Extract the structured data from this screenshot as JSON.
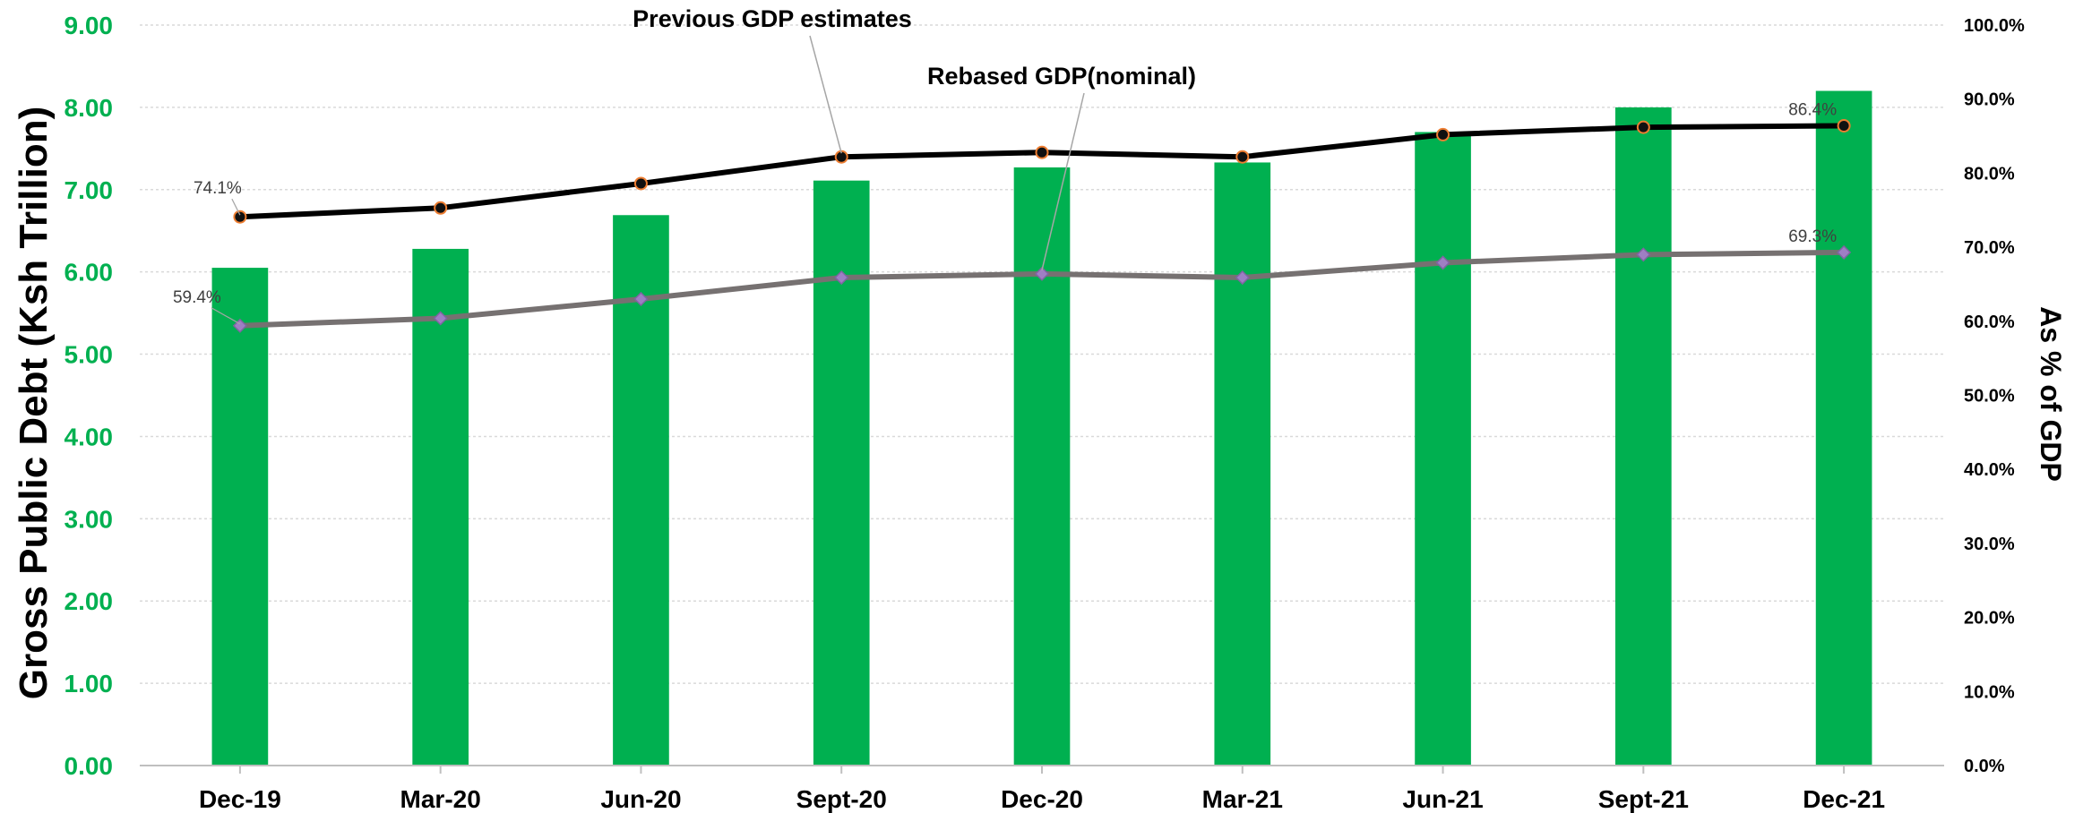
{
  "chart_data": {
    "type": "bar",
    "categories": [
      "Dec-19",
      "Mar-20",
      "Jun-20",
      "Sept-20",
      "Dec-20",
      "Mar-21",
      "Jun-21",
      "Sept-21",
      "Dec-21"
    ],
    "ylabel": "Gross Public Debt (Ksh Trillion)",
    "y2label": "As % of GDP",
    "ylim": [
      0,
      9
    ],
    "y2lim": [
      0,
      100
    ],
    "yticks": [
      "0.00",
      "1.00",
      "2.00",
      "3.00",
      "4.00",
      "5.00",
      "6.00",
      "7.00",
      "8.00",
      "9.00"
    ],
    "y2ticks": [
      "0.0%",
      "10.0%",
      "20.0%",
      "30.0%",
      "40.0%",
      "50.0%",
      "60.0%",
      "70.0%",
      "80.0%",
      "90.0%",
      "100.0%"
    ],
    "grid": true,
    "bars": {
      "axis": "left",
      "color": "#00b050",
      "values": [
        6.05,
        6.28,
        6.69,
        7.11,
        7.27,
        7.33,
        7.7,
        8.0,
        8.2
      ]
    },
    "series": [
      {
        "axis": "right",
        "color": "#000000",
        "marker_fill": "#111111",
        "marker_stroke": "#ed7d31",
        "values": [
          74.1,
          75.3,
          78.6,
          82.2,
          82.8,
          82.2,
          85.2,
          86.2,
          86.4
        ]
      },
      {
        "axis": "right",
        "color": "#767171",
        "marker_fill": "#9e7fc4",
        "marker_stroke": "#8064a2",
        "values": [
          59.4,
          60.4,
          63.0,
          65.9,
          66.4,
          65.9,
          67.9,
          69.0,
          69.3
        ]
      }
    ],
    "data_labels": [
      {
        "series": 0,
        "index": 0,
        "text": "74.1%"
      },
      {
        "series": 0,
        "index": 8,
        "text": "86.4%"
      },
      {
        "series": 1,
        "index": 0,
        "text": "59.4%"
      },
      {
        "series": 1,
        "index": 8,
        "text": "69.3%"
      }
    ],
    "annotations": [
      {
        "text": "Previous GDP estimates",
        "series": 0,
        "index": 3
      },
      {
        "text": "Rebased GDP(nominal)",
        "series": 1,
        "index": 4
      }
    ]
  }
}
